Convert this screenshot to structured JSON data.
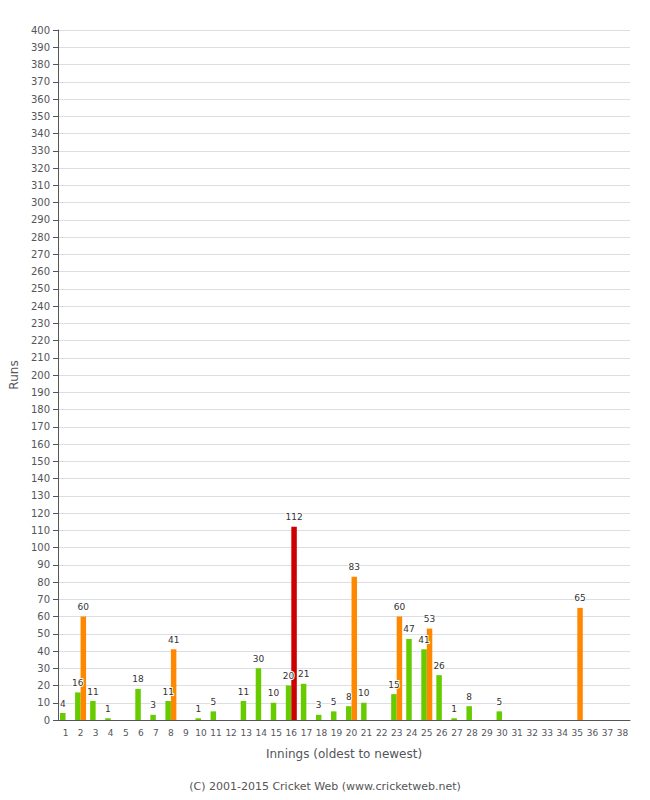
{
  "chart_data": {
    "type": "bar",
    "categories": [
      "1",
      "2",
      "3",
      "4",
      "5",
      "6",
      "7",
      "8",
      "9",
      "10",
      "11",
      "12",
      "13",
      "14",
      "15",
      "16",
      "17",
      "18",
      "19",
      "20",
      "21",
      "22",
      "23",
      "24",
      "25",
      "26",
      "27",
      "28",
      "29",
      "30",
      "31",
      "32",
      "33",
      "34",
      "35",
      "36",
      "37",
      "38"
    ],
    "series": [
      {
        "color": "#66cc00",
        "values": [
          4,
          16,
          11,
          1,
          0,
          18,
          3,
          11,
          0,
          1,
          5,
          0,
          11,
          30,
          10,
          20,
          21,
          3,
          5,
          8,
          10,
          0,
          15,
          47,
          41,
          26,
          1,
          8,
          0,
          5,
          0,
          0,
          0,
          0,
          0,
          0,
          0,
          0
        ]
      },
      {
        "color": "#ff8800",
        "values": [
          0,
          60,
          0,
          0,
          0,
          0,
          0,
          41,
          0,
          0,
          0,
          0,
          0,
          0,
          0,
          0,
          0,
          0,
          0,
          83,
          0,
          0,
          60,
          0,
          53,
          0,
          0,
          0,
          0,
          0,
          0,
          0,
          0,
          0,
          65,
          0,
          0,
          0
        ]
      },
      {
        "color": "#cc0000",
        "values": [
          0,
          0,
          0,
          0,
          0,
          0,
          0,
          0,
          0,
          0,
          0,
          0,
          0,
          0,
          0,
          112,
          0,
          0,
          0,
          0,
          0,
          0,
          0,
          0,
          0,
          0,
          0,
          0,
          0,
          0,
          0,
          0,
          0,
          0,
          0,
          0,
          0,
          0
        ]
      }
    ],
    "xlabel": "Innings (oldest to newest)",
    "ylabel": "Runs",
    "ylim": [
      0,
      400
    ],
    "yticks": [
      0,
      10,
      20,
      30,
      40,
      50,
      60,
      70,
      80,
      90,
      100,
      110,
      120,
      130,
      140,
      150,
      160,
      170,
      180,
      190,
      200,
      210,
      220,
      230,
      240,
      250,
      260,
      270,
      280,
      290,
      300,
      310,
      320,
      330,
      340,
      350,
      360,
      370,
      380,
      390,
      400
    ],
    "grid": true,
    "data_labels": true,
    "annotations": [
      "(C) 2001-2015 Cricket Web (www.cricketweb.net)"
    ]
  }
}
